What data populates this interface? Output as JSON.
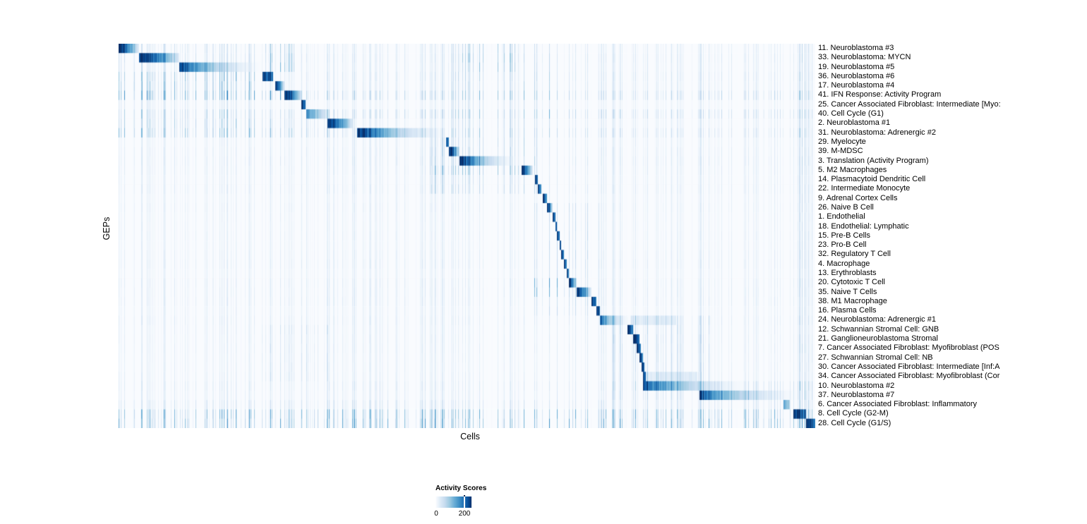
{
  "chart_data": {
    "type": "heatmap",
    "xlabel": "Cells",
    "ylabel": "GEPs",
    "n_rows": 41,
    "colorbar": {
      "title": "Activity Scores",
      "tick_labels": [
        "0",
        "200"
      ],
      "tick_values": [
        0,
        200
      ],
      "palette": [
        "#FCFDFF",
        "#DEEBF7",
        "#C6DBEF",
        "#9ECAE1",
        "#6BAED6",
        "#4292C6",
        "#2171B5",
        "#08519C",
        "#08306B"
      ],
      "palette_pos": [
        0,
        0.13,
        0.26,
        0.39,
        0.52,
        0.65,
        0.78,
        0.9,
        1
      ]
    },
    "rows": [
      {
        "label": "11. Neuroblastoma #3",
        "block": [
          0.0,
          0.029
        ],
        "peak": 1.0,
        "profile": "fade",
        "streak": 0.1
      },
      {
        "label": "33. Neuroblastoma: MYCN",
        "block": [
          0.029,
          0.087
        ],
        "peak": 1.0,
        "profile": "fade",
        "streak": 0.12
      },
      {
        "label": "19. Neuroblastoma #5",
        "block": [
          0.087,
          0.205
        ],
        "peak": 0.92,
        "profile": "long",
        "streak": 0.1
      },
      {
        "label": "36. Neuroblastoma #6",
        "block": [
          0.206,
          0.221
        ],
        "peak": 1.0,
        "profile": "solid",
        "streak": 0.14
      },
      {
        "label": "17. Neuroblastoma #4",
        "block": [
          0.224,
          0.238
        ],
        "peak": 1.0,
        "profile": "fade",
        "streak": 0.12
      },
      {
        "label": "41. IFN Response: Activity Program",
        "block": [
          0.238,
          0.263
        ],
        "peak": 1.0,
        "profile": "fade",
        "streak": 0.3
      },
      {
        "label": "25. Cancer Associated Fibroblast: Intermediate [Myo:",
        "block": [
          0.262,
          0.268
        ],
        "peak": 1.0,
        "profile": "solid",
        "streak": 0.05
      },
      {
        "label": "40. Cell Cycle (G1)",
        "block": [
          0.269,
          0.301
        ],
        "peak": 0.55,
        "profile": "fade",
        "streak": 0.28
      },
      {
        "label": "2. Neuroblastoma #1",
        "block": [
          0.299,
          0.336
        ],
        "peak": 1.0,
        "profile": "fade",
        "streak": 0.1
      },
      {
        "label": "31. Neuroblastoma: Adrenergic #2",
        "block": [
          0.342,
          0.47
        ],
        "peak": 1.0,
        "profile": "long",
        "streak": 0.22
      },
      {
        "label": "29. Myelocyte",
        "block": [
          0.47,
          0.474
        ],
        "peak": 0.9,
        "profile": "solid",
        "streak": 0.08
      },
      {
        "label": "39. M-MDSC",
        "block": [
          0.474,
          0.489
        ],
        "peak": 1.0,
        "profile": "fade",
        "streak": 0.1
      },
      {
        "label": "3. Translation (Activity Program)",
        "block": [
          0.489,
          0.571
        ],
        "peak": 1.0,
        "profile": "long",
        "streak": 0.12
      },
      {
        "label": "5. M2 Macrophages",
        "block": [
          0.578,
          0.594
        ],
        "peak": 1.0,
        "profile": "fade",
        "streak": 0.1
      },
      {
        "label": "14. Plasmacytoid Dendritic Cell",
        "block": [
          0.597,
          0.601
        ],
        "peak": 1.0,
        "profile": "solid",
        "streak": 0.08
      },
      {
        "label": "22. Intermediate Monocyte",
        "block": [
          0.601,
          0.606
        ],
        "peak": 1.0,
        "profile": "solid",
        "streak": 0.1
      },
      {
        "label": "9. Adrenal Cortex Cells",
        "block": [
          0.608,
          0.614
        ],
        "peak": 1.0,
        "profile": "solid",
        "streak": 0.06
      },
      {
        "label": "26. Naive B Cell",
        "block": [
          0.614,
          0.623
        ],
        "peak": 1.0,
        "profile": "fade",
        "streak": 0.08
      },
      {
        "label": "1. Endothelial",
        "block": [
          0.623,
          0.627
        ],
        "peak": 1.0,
        "profile": "solid",
        "streak": 0.06
      },
      {
        "label": "18. Endothelial: Lymphatic",
        "block": [
          0.627,
          0.629
        ],
        "peak": 1.0,
        "profile": "solid",
        "streak": 0.06
      },
      {
        "label": "15. Pre-B Cells",
        "block": [
          0.629,
          0.633
        ],
        "peak": 1.0,
        "profile": "solid",
        "streak": 0.07
      },
      {
        "label": "23. Pro-B Cell",
        "block": [
          0.633,
          0.635
        ],
        "peak": 1.0,
        "profile": "solid",
        "streak": 0.06
      },
      {
        "label": "32. Regulatory T Cell",
        "block": [
          0.635,
          0.639
        ],
        "peak": 1.0,
        "profile": "solid",
        "streak": 0.08
      },
      {
        "label": "4. Macrophage",
        "block": [
          0.639,
          0.643
        ],
        "peak": 1.0,
        "profile": "solid",
        "streak": 0.09
      },
      {
        "label": "13. Erythroblasts",
        "block": [
          0.643,
          0.646
        ],
        "peak": 1.0,
        "profile": "solid",
        "streak": 0.06
      },
      {
        "label": "20. Cytotoxic T Cell",
        "block": [
          0.646,
          0.657
        ],
        "peak": 1.0,
        "profile": "fade",
        "streak": 0.1
      },
      {
        "label": "35. Naive T Cells",
        "block": [
          0.657,
          0.678
        ],
        "peak": 1.0,
        "profile": "fade",
        "streak": 0.1
      },
      {
        "label": "38. M1 Macrophage",
        "block": [
          0.678,
          0.685
        ],
        "peak": 1.0,
        "profile": "solid",
        "streak": 0.1
      },
      {
        "label": "16. Plasma Cells",
        "block": [
          0.685,
          0.69
        ],
        "peak": 1.0,
        "profile": "solid",
        "streak": 0.07
      },
      {
        "label": "24. Neuroblastoma: Adrenergic #1",
        "block": [
          0.69,
          0.734
        ],
        "peak": 0.8,
        "profile": "long",
        "streak": 0.1,
        "tail": [
          0.734,
          0.8,
          0.1
        ]
      },
      {
        "label": "12. Schwannian Stromal Cell: GNB",
        "block": [
          0.73,
          0.738
        ],
        "peak": 1.0,
        "profile": "solid",
        "streak": 0.08
      },
      {
        "label": "21. Ganglioneuroblastoma Stromal",
        "block": [
          0.738,
          0.747
        ],
        "peak": 1.0,
        "profile": "solid",
        "streak": 0.08
      },
      {
        "label": "7. Cancer Associated Fibroblast: Myofibroblast (POS",
        "block": [
          0.743,
          0.749
        ],
        "peak": 1.0,
        "profile": "solid",
        "streak": 0.08
      },
      {
        "label": "27. Schwannian Stromal Cell: NB",
        "block": [
          0.747,
          0.752
        ],
        "peak": 1.0,
        "profile": "solid",
        "streak": 0.07
      },
      {
        "label": "30. Cancer Associated Fibroblast: Intermediate [Inf:A",
        "block": [
          0.75,
          0.754
        ],
        "peak": 1.0,
        "profile": "solid",
        "streak": 0.07
      },
      {
        "label": "34. Cancer Associated Fibroblast: Myofibroblast (Cor",
        "block": [
          0.752,
          0.756
        ],
        "peak": 1.0,
        "profile": "solid",
        "streak": 0.08,
        "tail": [
          0.756,
          0.83,
          0.12
        ]
      },
      {
        "label": "10. Neuroblastoma #2",
        "block": [
          0.752,
          0.907
        ],
        "peak": 0.82,
        "profile": "long",
        "streak": 0.12
      },
      {
        "label": "37. Neuroblastoma #7",
        "block": [
          0.833,
          0.976
        ],
        "peak": 0.82,
        "profile": "long",
        "streak": 0.1
      },
      {
        "label": "6. Cancer Associated Fibroblast: Inflammatory",
        "block": [
          0.954,
          0.963
        ],
        "peak": 0.5,
        "profile": "solid",
        "streak": 0.12
      },
      {
        "label": "8. Cell Cycle (G2-M)",
        "block": [
          0.968,
          0.986
        ],
        "peak": 1.0,
        "profile": "solid",
        "streak": 0.26
      },
      {
        "label": "28. Cell Cycle (G1/S)",
        "block": [
          0.986,
          1.0
        ],
        "peak": 1.0,
        "profile": "solid",
        "streak": 0.32
      }
    ],
    "echo_regions": [
      {
        "r": [
          0,
          2
        ],
        "c": [
          0.206,
          0.262
        ],
        "v": 0.45
      },
      {
        "r": [
          0,
          2
        ],
        "c": [
          0.489,
          0.571
        ],
        "v": 0.25
      },
      {
        "r": [
          3,
          4
        ],
        "c": [
          0.0,
          0.205
        ],
        "v": 0.3
      },
      {
        "r": [
          5,
          5
        ],
        "c": [
          0.0,
          0.238
        ],
        "v": 0.35
      },
      {
        "r": [
          8,
          9
        ],
        "c": [
          0.0,
          0.3
        ],
        "v": 0.2
      },
      {
        "r": [
          0,
          9
        ],
        "c": [
          0.47,
          0.62
        ],
        "v": 0.18
      },
      {
        "r": [
          10,
          15
        ],
        "c": [
          0.44,
          0.6
        ],
        "v": 0.22
      },
      {
        "r": [
          13,
          13
        ],
        "c": [
          0.45,
          0.58
        ],
        "v": 0.25
      },
      {
        "r": [
          17,
          28
        ],
        "c": [
          0.585,
          0.69
        ],
        "v": 0.18
      },
      {
        "r": [
          25,
          26
        ],
        "c": [
          0.595,
          0.645
        ],
        "v": 0.35
      },
      {
        "r": [
          29,
          37
        ],
        "c": [
          0.705,
          0.85
        ],
        "v": 0.18
      },
      {
        "r": [
          30,
          35
        ],
        "c": [
          0.2,
          0.3
        ],
        "v": 0.12
      },
      {
        "r": [
          36,
          37
        ],
        "c": [
          0.85,
          1.0
        ],
        "v": 0.18
      },
      {
        "r": [
          39,
          40
        ],
        "c": [
          0.0,
          1.0
        ],
        "v": 0.3
      },
      {
        "r": [
          38,
          38
        ],
        "c": [
          0.0,
          1.0
        ],
        "v": 0.08
      },
      {
        "r": [
          0,
          40
        ],
        "c": [
          0.972,
          1.0
        ],
        "v": 0.15
      },
      {
        "r": [
          0,
          9
        ],
        "c": [
          0.0,
          0.205
        ],
        "v": 0.12
      }
    ]
  }
}
